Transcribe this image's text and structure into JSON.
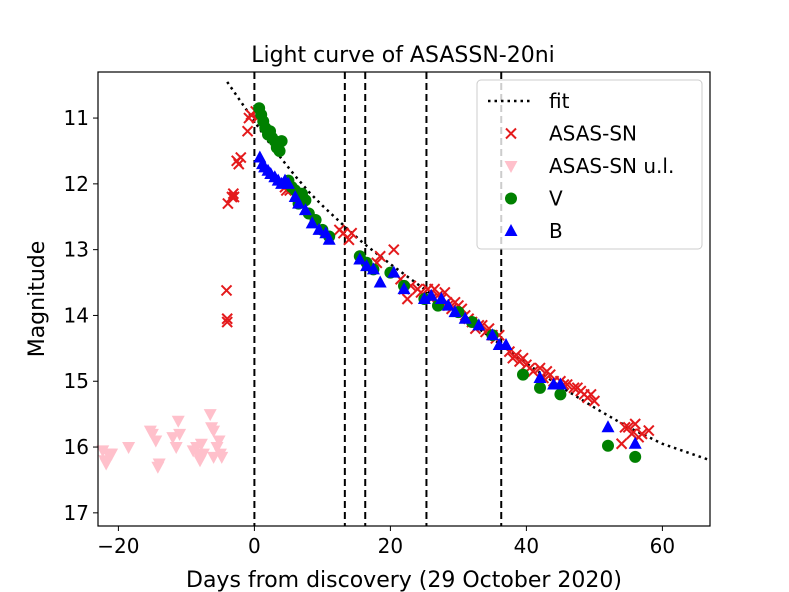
{
  "chart_data": {
    "type": "scatter",
    "title": "Light curve of ASASSN-20ni",
    "xlabel": "Days from discovery (29 October 2020)",
    "ylabel": "Magnitude",
    "xlim": [
      -23,
      67
    ],
    "ylim": [
      17.2,
      10.3
    ],
    "y_inverted": true,
    "grid": false,
    "legend_position": "top-right",
    "x_ticks": [
      -20,
      0,
      20,
      40,
      60
    ],
    "x_tick_labels": [
      "−20",
      "0",
      "20",
      "40",
      "60"
    ],
    "y_ticks": [
      11,
      12,
      13,
      14,
      15,
      16,
      17
    ],
    "y_tick_labels": [
      "11",
      "12",
      "13",
      "14",
      "15",
      "16",
      "17"
    ],
    "vertical_lines_x": [
      0,
      13.3,
      16.3,
      25.3,
      36.3
    ],
    "legend": [
      {
        "label": "fit",
        "marker": "dotted-line",
        "color": "#000000"
      },
      {
        "label": "ASAS-SN",
        "marker": "x",
        "color": "#e41a1c"
      },
      {
        "label": "ASAS-SN u.l.",
        "marker": "triangle-down",
        "color": "#ffc0cb"
      },
      {
        "label": "V",
        "marker": "circle",
        "color": "#008000"
      },
      {
        "label": "B",
        "marker": "triangle-up",
        "color": "#0000ff"
      }
    ],
    "fit": {
      "x": [
        -4,
        -2,
        0,
        2,
        4,
        6,
        8,
        10,
        13,
        16,
        20,
        25,
        30,
        35,
        40,
        45,
        50,
        55,
        60,
        67
      ],
      "y": [
        10.45,
        10.75,
        11.05,
        11.35,
        11.62,
        11.88,
        12.12,
        12.33,
        12.62,
        12.9,
        13.22,
        13.6,
        13.98,
        14.35,
        14.73,
        15.08,
        15.4,
        15.7,
        15.95,
        16.2
      ]
    },
    "series": [
      {
        "name": "ASAS-SN",
        "marker": "x",
        "color": "#e41a1c",
        "x": [
          -4.1,
          -4.0,
          -4.0,
          -3.9,
          -3.3,
          -3.0,
          -3.1,
          -2.6,
          -2.3,
          -2.0,
          -1.0,
          -0.8,
          -0.5,
          0.2,
          0.4,
          4.5,
          4.7,
          5.2,
          6.4,
          12.5,
          13.1,
          13.9,
          14.3,
          18.0,
          18.5,
          20.5,
          21.5,
          22.0,
          22.5,
          23.0,
          24.0,
          24.5,
          25.5,
          26.0,
          26.5,
          27.0,
          27.5,
          28.0,
          28.3,
          28.5,
          29.0,
          29.5,
          30.0,
          30.5,
          31.0,
          31.5,
          32.0,
          32.5,
          33.0,
          33.5,
          34.0,
          34.5,
          35.0,
          35.5,
          36.0,
          37.5,
          38.0,
          38.5,
          39.0,
          39.5,
          40.0,
          40.5,
          41.0,
          42.0,
          42.5,
          43.0,
          43.5,
          44.0,
          45.0,
          45.5,
          46.0,
          47.0,
          47.5,
          48.0,
          48.5,
          49.0,
          49.5,
          50.0,
          54.0,
          54.5,
          55.0,
          55.5,
          56.0,
          56.5,
          57.0,
          58.0
        ],
        "y": [
          13.62,
          14.05,
          14.1,
          12.3,
          12.2,
          12.2,
          12.15,
          11.65,
          11.7,
          11.6,
          11.2,
          11.0,
          10.95,
          10.9,
          11.0,
          12.05,
          12.1,
          12.1,
          12.2,
          12.7,
          12.75,
          12.85,
          12.75,
          13.2,
          13.1,
          13.0,
          13.45,
          13.6,
          13.75,
          13.55,
          13.6,
          13.65,
          13.6,
          13.75,
          13.6,
          13.7,
          13.75,
          13.65,
          13.8,
          13.85,
          13.9,
          13.8,
          13.85,
          13.9,
          14.0,
          14.05,
          14.1,
          14.2,
          14.15,
          14.15,
          14.25,
          14.2,
          14.3,
          14.35,
          14.3,
          14.55,
          14.65,
          14.6,
          14.7,
          14.65,
          14.75,
          14.8,
          14.85,
          14.8,
          14.95,
          14.85,
          14.9,
          15.0,
          15.0,
          15.05,
          15.05,
          15.1,
          15.1,
          15.15,
          15.2,
          15.25,
          15.2,
          15.3,
          15.95,
          15.7,
          15.7,
          15.8,
          15.65,
          15.85,
          15.8,
          15.75
        ]
      },
      {
        "name": "ASAS-SN u.l.",
        "marker": "triangle-down",
        "color": "#ffc0cb",
        "x": [
          -22.3,
          -22.0,
          -21.8,
          -21.5,
          -21.2,
          -21.0,
          -18.5,
          -15.3,
          -15.0,
          -14.5,
          -14.2,
          -14.0,
          -12.0,
          -11.5,
          -11.2,
          -11.0,
          -9.0,
          -8.5,
          -8.3,
          -8.0,
          -7.8,
          -7.5,
          -6.5,
          -6.3,
          -6.0,
          -6.0,
          -5.5,
          -5.2,
          -5.0,
          -4.8
        ],
        "y": [
          16.05,
          16.2,
          16.25,
          16.1,
          16.1,
          16.1,
          16.0,
          15.75,
          15.8,
          15.9,
          16.3,
          16.25,
          15.85,
          16.0,
          15.6,
          15.8,
          16.05,
          16.0,
          16.1,
          16.2,
          15.95,
          16.1,
          15.5,
          15.7,
          15.75,
          16.15,
          16.0,
          15.9,
          16.1,
          16.15
        ]
      },
      {
        "name": "V",
        "marker": "circle",
        "color": "#008000",
        "x": [
          0.7,
          1.0,
          1.3,
          1.6,
          2.0,
          2.3,
          2.6,
          3.0,
          3.3,
          3.7,
          4.0,
          5.0,
          5.5,
          6.0,
          6.5,
          7.0,
          7.5,
          8.0,
          9.0,
          10.0,
          11.0,
          15.5,
          16.5,
          17.5,
          20.0,
          22.0,
          25.0,
          27.0,
          30.0,
          32.0,
          35.0,
          39.5,
          42.0,
          45.0,
          52.0,
          56.0
        ],
        "y": [
          10.85,
          10.95,
          11.05,
          11.15,
          11.25,
          11.2,
          11.3,
          11.35,
          11.45,
          11.5,
          11.35,
          11.95,
          12.05,
          12.1,
          12.3,
          12.15,
          12.25,
          12.45,
          12.55,
          12.7,
          12.8,
          13.1,
          13.2,
          13.3,
          13.35,
          13.55,
          13.75,
          13.85,
          13.95,
          14.1,
          14.3,
          14.9,
          15.1,
          15.2,
          15.98,
          16.15
        ]
      },
      {
        "name": "B",
        "marker": "triangle-up",
        "color": "#0000ff",
        "x": [
          0.8,
          1.2,
          1.5,
          2.0,
          2.4,
          3.0,
          3.5,
          4.0,
          4.5,
          5.0,
          6.0,
          6.5,
          7.5,
          8.5,
          9.5,
          10.5,
          11.0,
          15.5,
          16.5,
          17.5,
          18.5,
          20.5,
          22.0,
          25.0,
          26.0,
          27.5,
          28.5,
          29.5,
          31.0,
          33.0,
          35.0,
          36.0,
          37.0,
          42.0,
          44.0,
          45.0,
          52.0,
          56.0
        ],
        "y": [
          11.6,
          11.7,
          11.75,
          11.8,
          11.85,
          11.9,
          11.95,
          12.0,
          11.95,
          12.0,
          12.2,
          12.3,
          12.4,
          12.6,
          12.7,
          12.75,
          12.85,
          13.15,
          13.25,
          13.3,
          13.5,
          13.35,
          13.6,
          13.75,
          13.7,
          13.75,
          13.85,
          13.95,
          14.05,
          14.15,
          14.3,
          14.45,
          14.45,
          14.95,
          15.05,
          15.05,
          15.7,
          15.95
        ]
      }
    ]
  }
}
